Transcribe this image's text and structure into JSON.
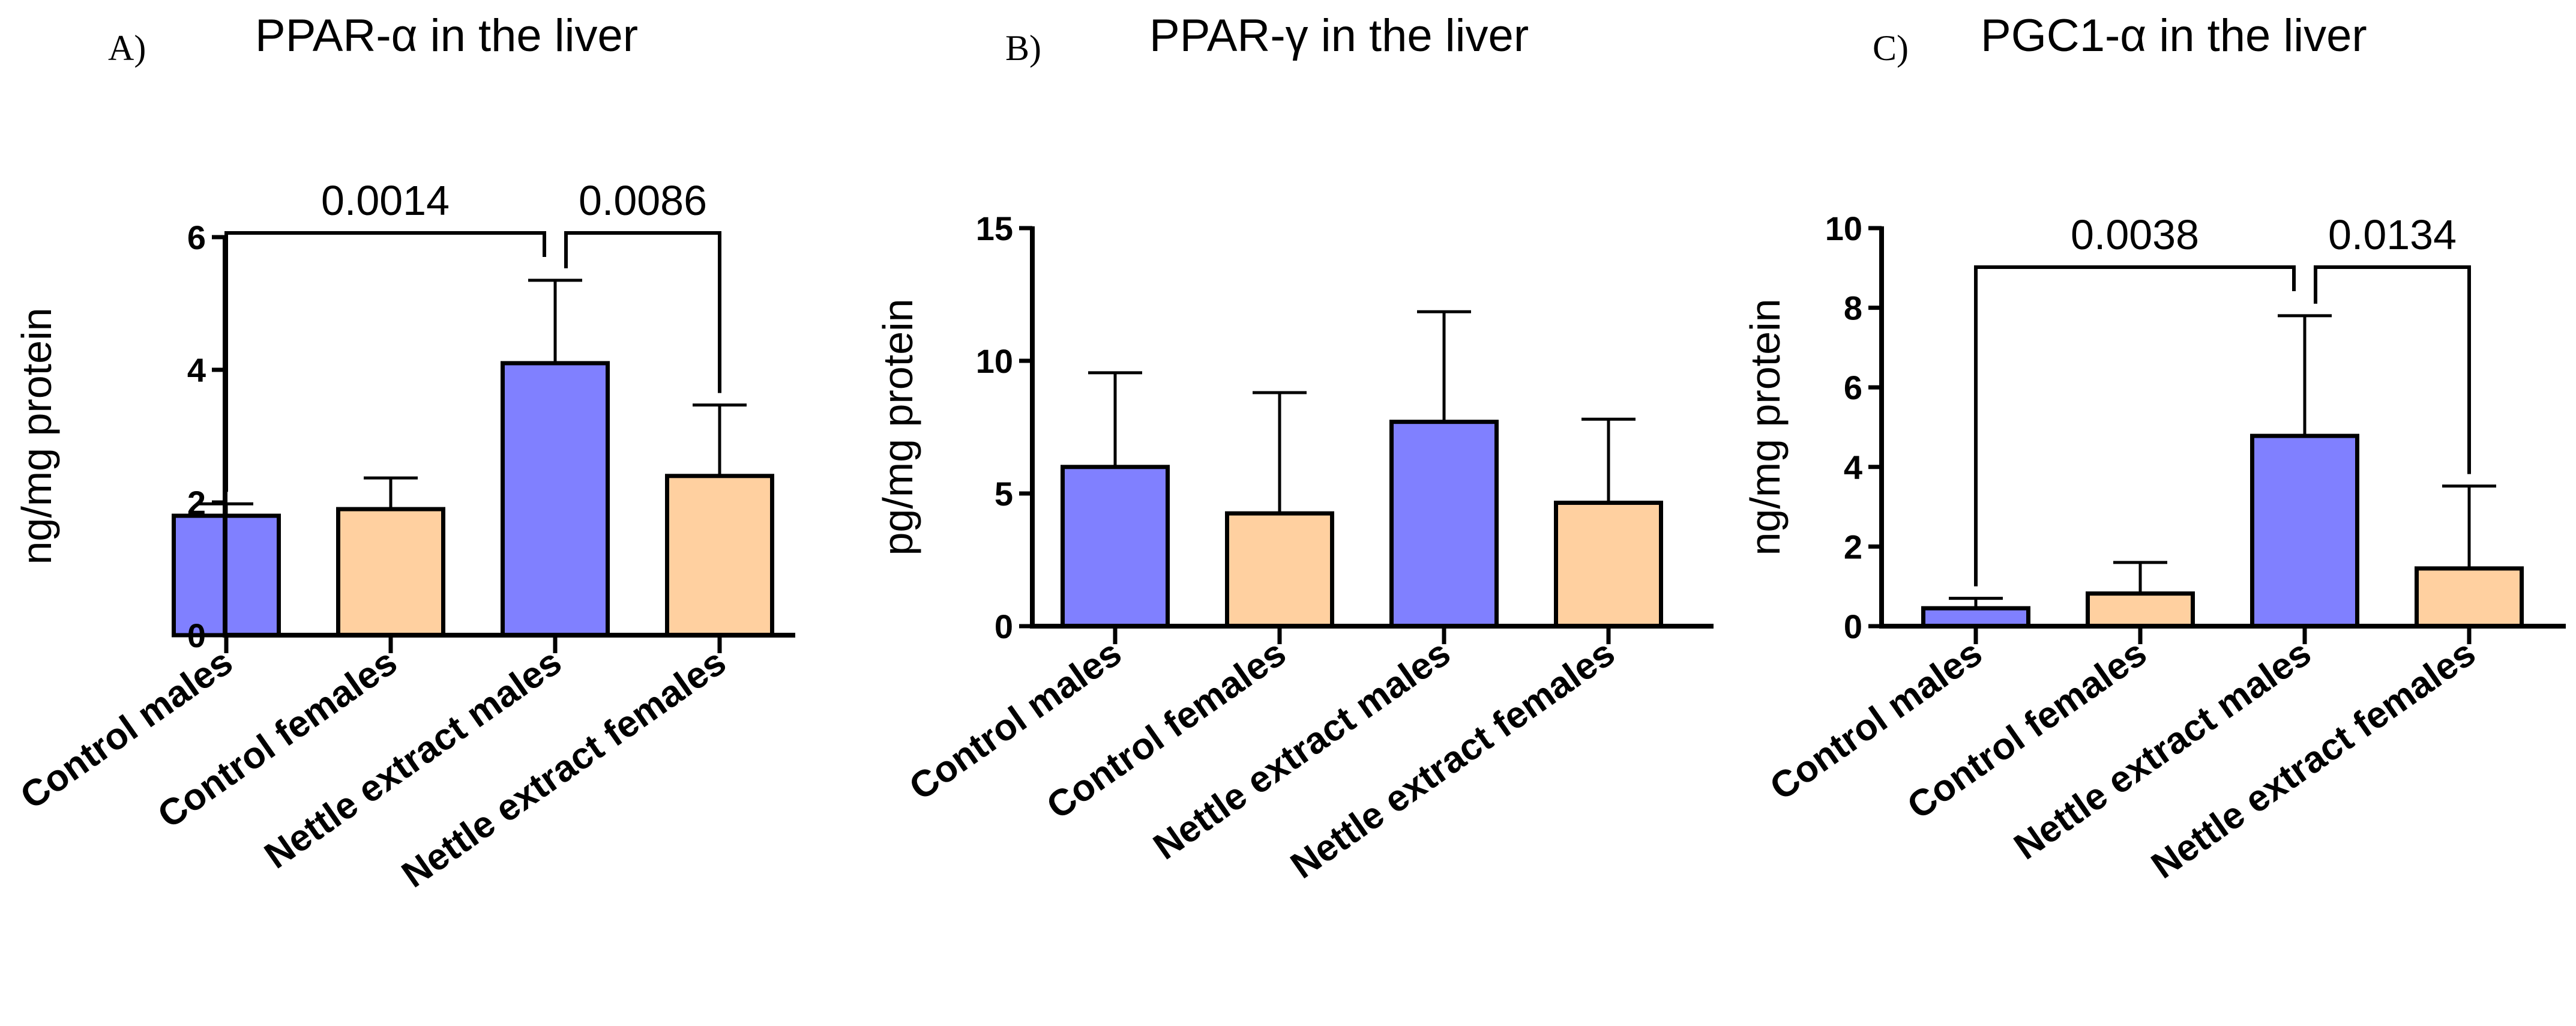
{
  "chart_data": [
    {
      "type": "bar",
      "panel": "A)",
      "title": "PPAR-α in the liver",
      "xlabel": "",
      "ylabel": "ng/mg protein",
      "ylim": [
        0,
        6
      ],
      "yticks": [
        0,
        2,
        4,
        6
      ],
      "ytick_labels": [
        "0",
        "2",
        "4",
        "6"
      ],
      "categories": [
        "Control males",
        "Control females",
        "Nettle extract males",
        "Nettle extract females"
      ],
      "values": [
        1.8,
        1.9,
        4.1,
        2.4
      ],
      "errors": [
        0.18,
        0.47,
        1.25,
        1.07
      ],
      "colors": [
        "#8080ff",
        "#ffd0a0",
        "#8080ff",
        "#ffd0a0"
      ],
      "comparisons": [
        {
          "from": 0,
          "to": 2,
          "label": "0.0014"
        },
        {
          "from": 2,
          "to": 3,
          "label": "0.0086"
        }
      ]
    },
    {
      "type": "bar",
      "panel": "B)",
      "title": "PPAR-γ in the liver",
      "xlabel": "",
      "ylabel": "pg/mg protein",
      "ylim": [
        0,
        15
      ],
      "yticks": [
        0,
        5,
        10,
        15
      ],
      "ytick_labels": [
        "0",
        "5",
        "10",
        "15"
      ],
      "categories": [
        "Control males",
        "Control females",
        "Nettle extract males",
        "Nettle extract females"
      ],
      "values": [
        6.0,
        4.25,
        7.7,
        4.65
      ],
      "errors": [
        3.55,
        4.55,
        4.15,
        3.15
      ],
      "colors": [
        "#8080ff",
        "#ffd0a0",
        "#8080ff",
        "#ffd0a0"
      ],
      "comparisons": []
    },
    {
      "type": "bar",
      "panel": "C)",
      "title": "PGC1-α in the liver",
      "xlabel": "",
      "ylabel": "ng/mg protein",
      "ylim": [
        0,
        10
      ],
      "yticks": [
        0,
        2,
        4,
        6,
        8,
        10
      ],
      "ytick_labels": [
        "0",
        "2",
        "4",
        "6",
        "8",
        "10"
      ],
      "categories": [
        "Control males",
        "Control females",
        "Nettle extract males",
        "Nettle extract females"
      ],
      "values": [
        0.45,
        0.82,
        4.78,
        1.45
      ],
      "errors": [
        0.25,
        0.78,
        3.02,
        2.07
      ],
      "colors": [
        "#8080ff",
        "#ffd0a0",
        "#8080ff",
        "#ffd0a0"
      ],
      "comparisons": [
        {
          "from": 0,
          "to": 2,
          "label": "0.0038"
        },
        {
          "from": 2,
          "to": 3,
          "label": "0.0134"
        }
      ]
    }
  ]
}
